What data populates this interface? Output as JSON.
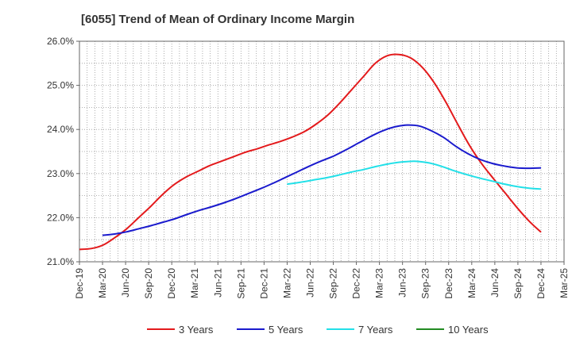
{
  "chart_data": {
    "type": "line",
    "title": "[6055]  Trend of Mean of Ordinary Income Margin",
    "xlabel": "",
    "ylabel": "",
    "grid": true,
    "legend_position": "bottom",
    "ylim": [
      21.0,
      26.0
    ],
    "yticks": [
      "21.0%",
      "22.0%",
      "23.0%",
      "24.0%",
      "25.0%",
      "26.0%"
    ],
    "xticks": [
      "Dec-19",
      "Mar-20",
      "Jun-20",
      "Sep-20",
      "Dec-20",
      "Mar-21",
      "Jun-21",
      "Sep-21",
      "Dec-21",
      "Mar-22",
      "Jun-22",
      "Sep-22",
      "Dec-22",
      "Mar-23",
      "Jun-23",
      "Sep-23",
      "Dec-23",
      "Mar-24",
      "Jun-24",
      "Sep-24",
      "Dec-24",
      "Mar-25"
    ],
    "series": [
      {
        "name": "3 Years",
        "color": "#e31a1c",
        "values": [
          21.28,
          21.3,
          21.38,
          21.55,
          21.75,
          22.0,
          22.25,
          22.52,
          22.75,
          22.92,
          23.05,
          23.18,
          23.28,
          23.38,
          23.48,
          23.56,
          23.65,
          23.73,
          23.83,
          23.95,
          24.12,
          24.33,
          24.6,
          24.9,
          25.2,
          25.5,
          25.67,
          25.7,
          25.62,
          25.4,
          25.05,
          24.6,
          24.1,
          23.62,
          23.22,
          22.88,
          22.55,
          22.22,
          21.92,
          21.67
        ]
      },
      {
        "name": "5 Years",
        "color": "#1a1acd",
        "values": [
          null,
          null,
          null,
          null,
          null,
          null,
          null,
          null,
          null,
          null,
          null,
          null,
          null,
          null,
          null,
          null,
          null,
          null,
          null,
          null,
          null,
          null,
          null,
          null,
          null,
          null,
          null,
          null,
          null,
          null,
          null,
          null,
          null,
          null,
          null,
          null,
          null,
          null,
          null,
          null
        ]
      },
      {
        "name": "7 Years",
        "color": "#22e0e8",
        "values": []
      },
      {
        "name": "10 Years",
        "color": "#228b22",
        "values": []
      }
    ]
  },
  "legend": [
    "3 Years",
    "5 Years",
    "7 Years",
    "10 Years"
  ]
}
